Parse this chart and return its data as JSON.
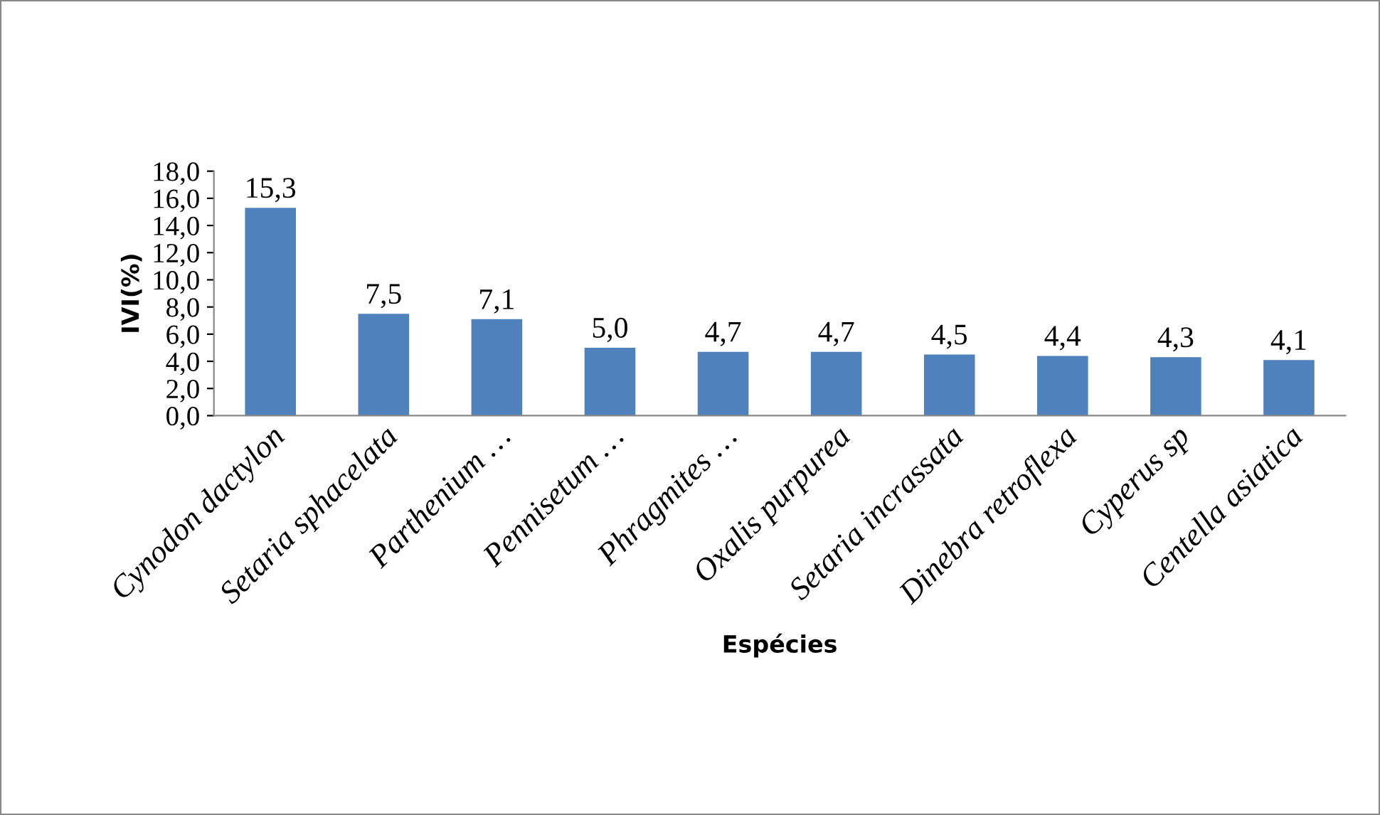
{
  "chart_data": {
    "type": "bar",
    "xlabel": "Espécies",
    "ylabel": "IVI(%)",
    "categories": [
      "Cynodon dactylon",
      "Setaria sphacelata",
      "Parthenium …",
      "Pennisetum …",
      "Phragmites …",
      "Oxalis purpurea",
      "Setaria incrassata",
      "Dinebra retroflexa",
      "Cyperus sp",
      "Centella asiatica"
    ],
    "values": [
      15.3,
      7.5,
      7.1,
      5.0,
      4.7,
      4.7,
      4.5,
      4.4,
      4.3,
      4.1
    ],
    "value_labels": [
      "15,3",
      "7,5",
      "7,1",
      "5,0",
      "4,7",
      "4,7",
      "4,5",
      "4,4",
      "4,3",
      "4,1"
    ],
    "color": "#4f81bd",
    "ylim": [
      0,
      18
    ],
    "yticks": [
      {
        "value": 0,
        "label": "0,0"
      },
      {
        "value": 2,
        "label": "2,0"
      },
      {
        "value": 4,
        "label": "4,0"
      },
      {
        "value": 6,
        "label": "6,0"
      },
      {
        "value": 8,
        "label": "8,0"
      },
      {
        "value": 10,
        "label": "10,0"
      },
      {
        "value": 12,
        "label": "12,0"
      },
      {
        "value": 14,
        "label": "14,0"
      },
      {
        "value": 16,
        "label": "16,0"
      },
      {
        "value": 18,
        "label": "18,0"
      }
    ],
    "grid": false,
    "legend": false
  }
}
